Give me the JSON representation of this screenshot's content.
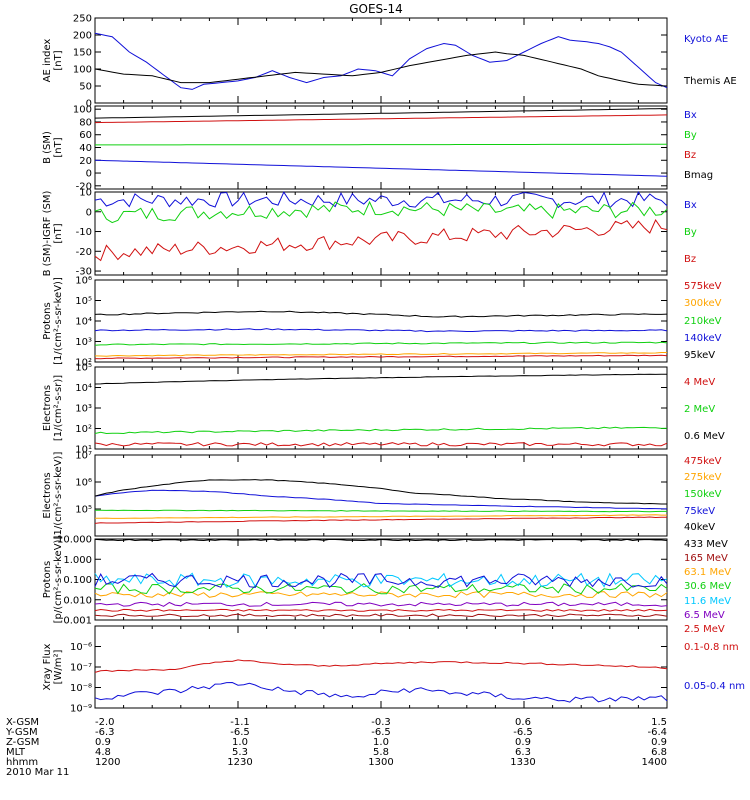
{
  "title": "GOES-14",
  "date_label": "2010 Mar 11",
  "ephemeris": {
    "labels": [
      "X-GSM",
      "Y-GSM",
      "Z-GSM",
      "MLT",
      "hhmm"
    ],
    "columns": [
      [
        "-2.0",
        "-6.3",
        "0.9",
        "4.8",
        "1200"
      ],
      [
        "-1.1",
        "-6.5",
        "1.0",
        "5.3",
        "1230"
      ],
      [
        "-0.3",
        "-6.5",
        "1.0",
        "5.8",
        "1300"
      ],
      [
        "0.6",
        "-6.5",
        "0.9",
        "6.3",
        "1330"
      ],
      [
        "1.5",
        "-6.4",
        "0.9",
        "6.8",
        "1400"
      ]
    ]
  },
  "colors": {
    "black": "#000000",
    "blue": "#1010d8",
    "red": "#d01010",
    "green": "#10d010",
    "orange": "#ffa500",
    "darkred": "#a01010",
    "cyan": "#00c8ff",
    "purple": "#8000c0"
  },
  "chart_data": [
    {
      "type": "line",
      "ylabel": [
        "AE index",
        "[nT]"
      ],
      "scale": "linear",
      "ylim": [
        0,
        250
      ],
      "ticks": [
        {
          "v": 0,
          "t": "0"
        },
        {
          "v": 50,
          "t": "50"
        },
        {
          "v": 100,
          "t": "100"
        },
        {
          "v": 150,
          "t": "150"
        },
        {
          "v": 200,
          "t": "200"
        },
        {
          "v": 250,
          "t": "250"
        }
      ],
      "series": [
        {
          "name": "Kyoto AE",
          "color": "blue",
          "kind": "pts",
          "values": [
            [
              0,
              205
            ],
            [
              3,
              195
            ],
            [
              6,
              150
            ],
            [
              9,
              120
            ],
            [
              11,
              95
            ],
            [
              13,
              70
            ],
            [
              15,
              45
            ],
            [
              17,
              40
            ],
            [
              19,
              55
            ],
            [
              22,
              60
            ],
            [
              25,
              65
            ],
            [
              28,
              75
            ],
            [
              31,
              95
            ],
            [
              34,
              75
            ],
            [
              37,
              60
            ],
            [
              40,
              75
            ],
            [
              43,
              80
            ],
            [
              46,
              100
            ],
            [
              49,
              95
            ],
            [
              52,
              80
            ],
            [
              55,
              130
            ],
            [
              58,
              160
            ],
            [
              61,
              175
            ],
            [
              63,
              170
            ],
            [
              66,
              140
            ],
            [
              69,
              120
            ],
            [
              72,
              125
            ],
            [
              75,
              150
            ],
            [
              78,
              175
            ],
            [
              81,
              195
            ],
            [
              83,
              185
            ],
            [
              86,
              180
            ],
            [
              88,
              175
            ],
            [
              90,
              165
            ],
            [
              92,
              150
            ],
            [
              94,
              120
            ],
            [
              96,
              90
            ],
            [
              98,
              60
            ],
            [
              100,
              45
            ]
          ]
        },
        {
          "name": "Themis AE",
          "color": "black",
          "kind": "pts",
          "values": [
            [
              0,
              100
            ],
            [
              5,
              85
            ],
            [
              10,
              80
            ],
            [
              15,
              60
            ],
            [
              20,
              60
            ],
            [
              25,
              70
            ],
            [
              30,
              80
            ],
            [
              35,
              90
            ],
            [
              40,
              85
            ],
            [
              45,
              80
            ],
            [
              50,
              90
            ],
            [
              55,
              110
            ],
            [
              60,
              125
            ],
            [
              65,
              140
            ],
            [
              70,
              150
            ],
            [
              72,
              145
            ],
            [
              75,
              140
            ],
            [
              80,
              120
            ],
            [
              85,
              100
            ],
            [
              88,
              80
            ],
            [
              92,
              65
            ],
            [
              95,
              55
            ],
            [
              100,
              50
            ]
          ]
        }
      ]
    },
    {
      "type": "line",
      "ylabel": [
        "B (SM)",
        "[nT]"
      ],
      "scale": "linear",
      "ylim": [
        -25,
        105
      ],
      "ticks": [
        {
          "v": -20,
          "t": "-20"
        },
        {
          "v": 0,
          "t": "0"
        },
        {
          "v": 20,
          "t": "20"
        },
        {
          "v": 40,
          "t": "40"
        },
        {
          "v": 60,
          "t": "60"
        },
        {
          "v": 80,
          "t": "80"
        },
        {
          "v": 100,
          "t": "100"
        }
      ],
      "series": [
        {
          "name": "Bx",
          "color": "blue",
          "kind": "lin",
          "values": [
            20,
            -5
          ]
        },
        {
          "name": "By",
          "color": "green",
          "kind": "lin",
          "values": [
            44,
            45
          ]
        },
        {
          "name": "Bz",
          "color": "red",
          "kind": "lin",
          "values": [
            79,
            91
          ]
        },
        {
          "name": "Bmag",
          "color": "black",
          "kind": "lin",
          "values": [
            86,
            101
          ]
        }
      ]
    },
    {
      "type": "line",
      "ylabel": [
        "B (SM)-IGRF (SM)",
        "[nT]"
      ],
      "scale": "linear",
      "ylim": [
        -32,
        10
      ],
      "ticks": [
        {
          "v": -30,
          "t": "-30"
        },
        {
          "v": -20,
          "t": "-20"
        },
        {
          "v": -10,
          "t": "-10"
        },
        {
          "v": 0,
          "t": "0"
        },
        {
          "v": 10,
          "t": "10"
        }
      ],
      "series": [
        {
          "name": "Bx",
          "color": "blue",
          "kind": "lin",
          "values": [
            6,
            6
          ],
          "noise": 0.4
        },
        {
          "name": "By",
          "color": "green",
          "kind": "pts",
          "values": [
            [
              0,
              -2
            ],
            [
              20,
              0
            ],
            [
              50,
              2
            ],
            [
              75,
              0
            ],
            [
              100,
              1
            ]
          ],
          "noise": 0.4
        },
        {
          "name": "Bz",
          "color": "red",
          "kind": "lin",
          "values": [
            -21,
            -7
          ],
          "noise": 0.4
        }
      ]
    },
    {
      "type": "line",
      "ylabel": [
        "Protons",
        "[1/(cm²-s-sr-keV)]"
      ],
      "scale": "log",
      "ylim": [
        100,
        1000000
      ],
      "ticks": [
        {
          "v": 100,
          "t": "10²"
        },
        {
          "v": 1000,
          "t": "10³"
        },
        {
          "v": 10000,
          "t": "10⁴"
        },
        {
          "v": 100000,
          "t": "10⁵"
        },
        {
          "v": 1000000,
          "t": "10⁶"
        }
      ],
      "series": [
        {
          "name": "575keV",
          "color": "red",
          "kind": "lin",
          "values": [
            150,
            210
          ],
          "noise": 0.02
        },
        {
          "name": "300keV",
          "color": "orange",
          "kind": "lin",
          "values": [
            200,
            280
          ],
          "noise": 0.02
        },
        {
          "name": "210keV",
          "color": "green",
          "kind": "lin",
          "values": [
            700,
            900
          ],
          "noise": 0.03
        },
        {
          "name": "140keV",
          "color": "blue",
          "kind": "pts",
          "values": [
            [
              0,
              3500
            ],
            [
              30,
              4000
            ],
            [
              60,
              3200
            ],
            [
              100,
              3500
            ]
          ],
          "noise": 0.03
        },
        {
          "name": "95keV",
          "color": "black",
          "kind": "pts",
          "values": [
            [
              0,
              20000
            ],
            [
              30,
              30000
            ],
            [
              60,
              16000
            ],
            [
              100,
              22000
            ]
          ],
          "noise": 0.03
        }
      ]
    },
    {
      "type": "line",
      "ylabel": [
        "Electrons",
        "[1/(cm²-s-sr)]"
      ],
      "scale": "log",
      "ylim": [
        10,
        100000
      ],
      "ticks": [
        {
          "v": 10,
          "t": "10¹"
        },
        {
          "v": 100,
          "t": "10²"
        },
        {
          "v": 1000,
          "t": "10³"
        },
        {
          "v": 10000,
          "t": "10⁴"
        },
        {
          "v": 100000,
          "t": "10⁵"
        }
      ],
      "series": [
        {
          "name": "4 MeV",
          "color": "red",
          "kind": "lin",
          "values": [
            17,
            17
          ],
          "noise": 0.08
        },
        {
          "name": "2 MeV",
          "color": "green",
          "kind": "lin",
          "values": [
            60,
            110
          ],
          "noise": 0.04
        },
        {
          "name": "0.6 MeV",
          "color": "black",
          "kind": "lin",
          "values": [
            15000,
            45000
          ],
          "noise": 0.01
        }
      ]
    },
    {
      "type": "line",
      "ylabel": [
        "Electrons",
        "[1/(cm²-s-sr-keV)]"
      ],
      "scale": "log",
      "ylim": [
        10000,
        10000000
      ],
      "ticks": [
        {
          "v": 100000,
          "t": "10⁵"
        },
        {
          "v": 1000000,
          "t": "10⁶"
        },
        {
          "v": 10000000,
          "t": "10⁷"
        }
      ],
      "series": [
        {
          "name": "475keV",
          "color": "red",
          "kind": "lin",
          "values": [
            30000,
            50000
          ],
          "noise": 0.01
        },
        {
          "name": "275keV",
          "color": "orange",
          "kind": "lin",
          "values": [
            45000,
            60000
          ],
          "noise": 0.01
        },
        {
          "name": "150keV",
          "color": "green",
          "kind": "lin",
          "values": [
            90000,
            80000
          ],
          "noise": 0.01
        },
        {
          "name": "75keV",
          "color": "blue",
          "kind": "pts",
          "values": [
            [
              0,
              300000
            ],
            [
              10,
              500000
            ],
            [
              20,
              450000
            ],
            [
              30,
              300000
            ],
            [
              50,
              160000
            ],
            [
              70,
              130000
            ],
            [
              100,
              100000
            ]
          ],
          "noise": 0.01
        },
        {
          "name": "40keV",
          "color": "black",
          "kind": "pts",
          "values": [
            [
              0,
              300000
            ],
            [
              10,
              700000
            ],
            [
              20,
              1200000
            ],
            [
              30,
              1200000
            ],
            [
              40,
              900000
            ],
            [
              55,
              400000
            ],
            [
              70,
              250000
            ],
            [
              85,
              180000
            ],
            [
              100,
              150000
            ]
          ],
          "noise": 0.01
        }
      ]
    },
    {
      "type": "line",
      "ylabel": [
        "Protons",
        "[p/(cm²-s-sr-keV)]"
      ],
      "scale": "log",
      "ylim": [
        0.001,
        10
      ],
      "ticks": [
        {
          "v": 0.001,
          "t": "0.001"
        },
        {
          "v": 0.01,
          "t": "0.010"
        },
        {
          "v": 0.1,
          "t": "0.100"
        },
        {
          "v": 1,
          "t": "1.000"
        },
        {
          "v": 10,
          "t": "10.000"
        }
      ],
      "series": [
        {
          "name": "433 MeV",
          "color": "black",
          "kind": "lin",
          "values": [
            9,
            9
          ],
          "noise": 0.03
        },
        {
          "name": "165 MeV",
          "color": "darkred",
          "kind": "lin",
          "values": [
            0.0017,
            0.0017
          ],
          "noise": 0.06
        },
        {
          "name": "63.1 MeV",
          "color": "orange",
          "kind": "lin",
          "values": [
            0.018,
            0.018
          ],
          "noise": 0.15
        },
        {
          "name": "30.6 MeV",
          "color": "green",
          "kind": "lin",
          "values": [
            0.035,
            0.035
          ],
          "noise": 0.25
        },
        {
          "name": "11.6 MeV",
          "color": "cyan",
          "kind": "lin",
          "values": [
            0.09,
            0.09
          ],
          "noise": 0.35
        },
        {
          "name": "6.5 MeV",
          "color": "purple",
          "kind": "lin",
          "values": [
            0.006,
            0.006
          ],
          "noise": 0.1
        },
        {
          "name": "2.5 MeV",
          "color": "red",
          "kind": "lin",
          "values": [
            0.003,
            0.003
          ],
          "noise": 0.05
        },
        {
          "name": "",
          "color": "blue",
          "kind": "lin",
          "values": [
            0.09,
            0.09
          ],
          "noise": 0.35
        }
      ]
    },
    {
      "type": "line",
      "ylabel": [
        "Xray Flux",
        "[W/m²]"
      ],
      "scale": "log",
      "ylim": [
        1e-09,
        1e-08
      ],
      "ticks": [
        {
          "v": 1e-09,
          "t": "10⁻⁹"
        },
        {
          "v": 1e-08,
          "t": "10⁻⁸"
        }
      ],
      "ticks_extra": [
        {
          "v": 1e-07,
          "t": "10⁻⁷"
        },
        {
          "v": 1e-06,
          "t": "10⁻⁶"
        }
      ],
      "series": [
        {
          "name": "0.1-0.8 nm",
          "color": "red",
          "kind": "pts",
          "values": [
            [
              0,
              6e-08
            ],
            [
              15,
              8e-08
            ],
            [
              25,
              2.2e-07
            ],
            [
              30,
              1.5e-07
            ],
            [
              40,
              1.1e-07
            ],
            [
              60,
              1.8e-07
            ],
            [
              80,
              1.4e-07
            ],
            [
              100,
              9e-08
            ]
          ],
          "noise": 0.04
        },
        {
          "name": "0.05-0.4 nm",
          "color": "blue",
          "kind": "pts",
          "values": [
            [
              0,
              3e-09
            ],
            [
              8,
              5e-09
            ],
            [
              15,
              7e-09
            ],
            [
              25,
              1.6e-08
            ],
            [
              33,
              7e-09
            ],
            [
              45,
              3e-09
            ],
            [
              55,
              8e-09
            ],
            [
              65,
              5e-09
            ],
            [
              75,
              3e-09
            ],
            [
              85,
              2.5e-09
            ],
            [
              100,
              3e-09
            ]
          ],
          "noise": 0.15
        }
      ]
    }
  ],
  "x_axis": {
    "ticks": [
      {
        "v": 0,
        "t": "-2.0"
      },
      {
        "v": 25,
        "t": "-1.1"
      },
      {
        "v": 50,
        "t": "-0.3"
      },
      {
        "v": 75,
        "t": "0.6"
      },
      {
        "v": 100,
        "t": "1.5"
      }
    ]
  }
}
